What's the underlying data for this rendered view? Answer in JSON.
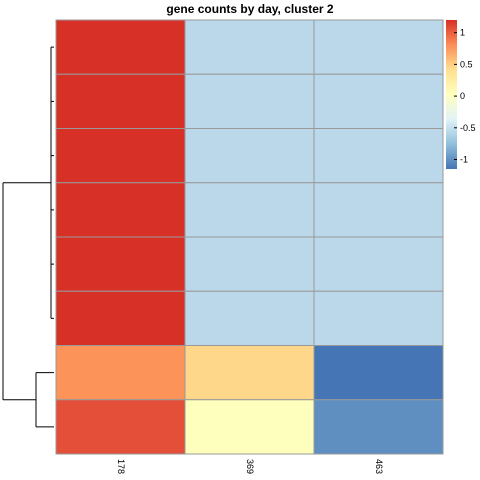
{
  "chart_data": {
    "type": "heatmap",
    "title": "gene counts by day, cluster 2",
    "columns": [
      "178",
      "369",
      "463"
    ],
    "rows": 8,
    "values": [
      [
        1.15,
        -0.58,
        -0.58
      ],
      [
        1.15,
        -0.58,
        -0.58
      ],
      [
        1.15,
        -0.58,
        -0.58
      ],
      [
        1.15,
        -0.58,
        -0.58
      ],
      [
        1.15,
        -0.58,
        -0.58
      ],
      [
        1.15,
        -0.58,
        -0.58
      ],
      [
        0.65,
        0.35,
        -1.0
      ],
      [
        0.9,
        0.1,
        -0.85
      ]
    ],
    "cell_colors": [
      [
        "#d73027",
        "#bad8e9",
        "#bad8e9"
      ],
      [
        "#d73027",
        "#bad8e9",
        "#bad8e9"
      ],
      [
        "#d73027",
        "#bad8e9",
        "#bad8e9"
      ],
      [
        "#d73027",
        "#bad8e9",
        "#bad8e9"
      ],
      [
        "#d73027",
        "#bad8e9",
        "#bad8e9"
      ],
      [
        "#d73027",
        "#bad8e9",
        "#bad8e9"
      ],
      [
        "#fc9459",
        "#fed78a",
        "#4575b4"
      ],
      [
        "#e34f39",
        "#fefebd",
        "#5f8fc1"
      ]
    ],
    "legend": {
      "ticks": [
        "1",
        "0.5",
        "0",
        "-0.5",
        "-1"
      ],
      "tick_values": [
        1,
        0.5,
        0,
        -0.5,
        -1
      ],
      "range": [
        -1.15,
        1.2
      ],
      "colors": [
        "#4575b4",
        "#91bfdb",
        "#e0f3f8",
        "#ffffbf",
        "#fee090",
        "#fc8d59",
        "#d73027"
      ]
    },
    "dendrogram": {
      "side": "row",
      "merges": [
        [
          0,
          1
        ],
        [
          2,
          3
        ],
        [
          4,
          5
        ],
        [
          6,
          7
        ]
      ]
    },
    "grid_color": "#999999"
  }
}
